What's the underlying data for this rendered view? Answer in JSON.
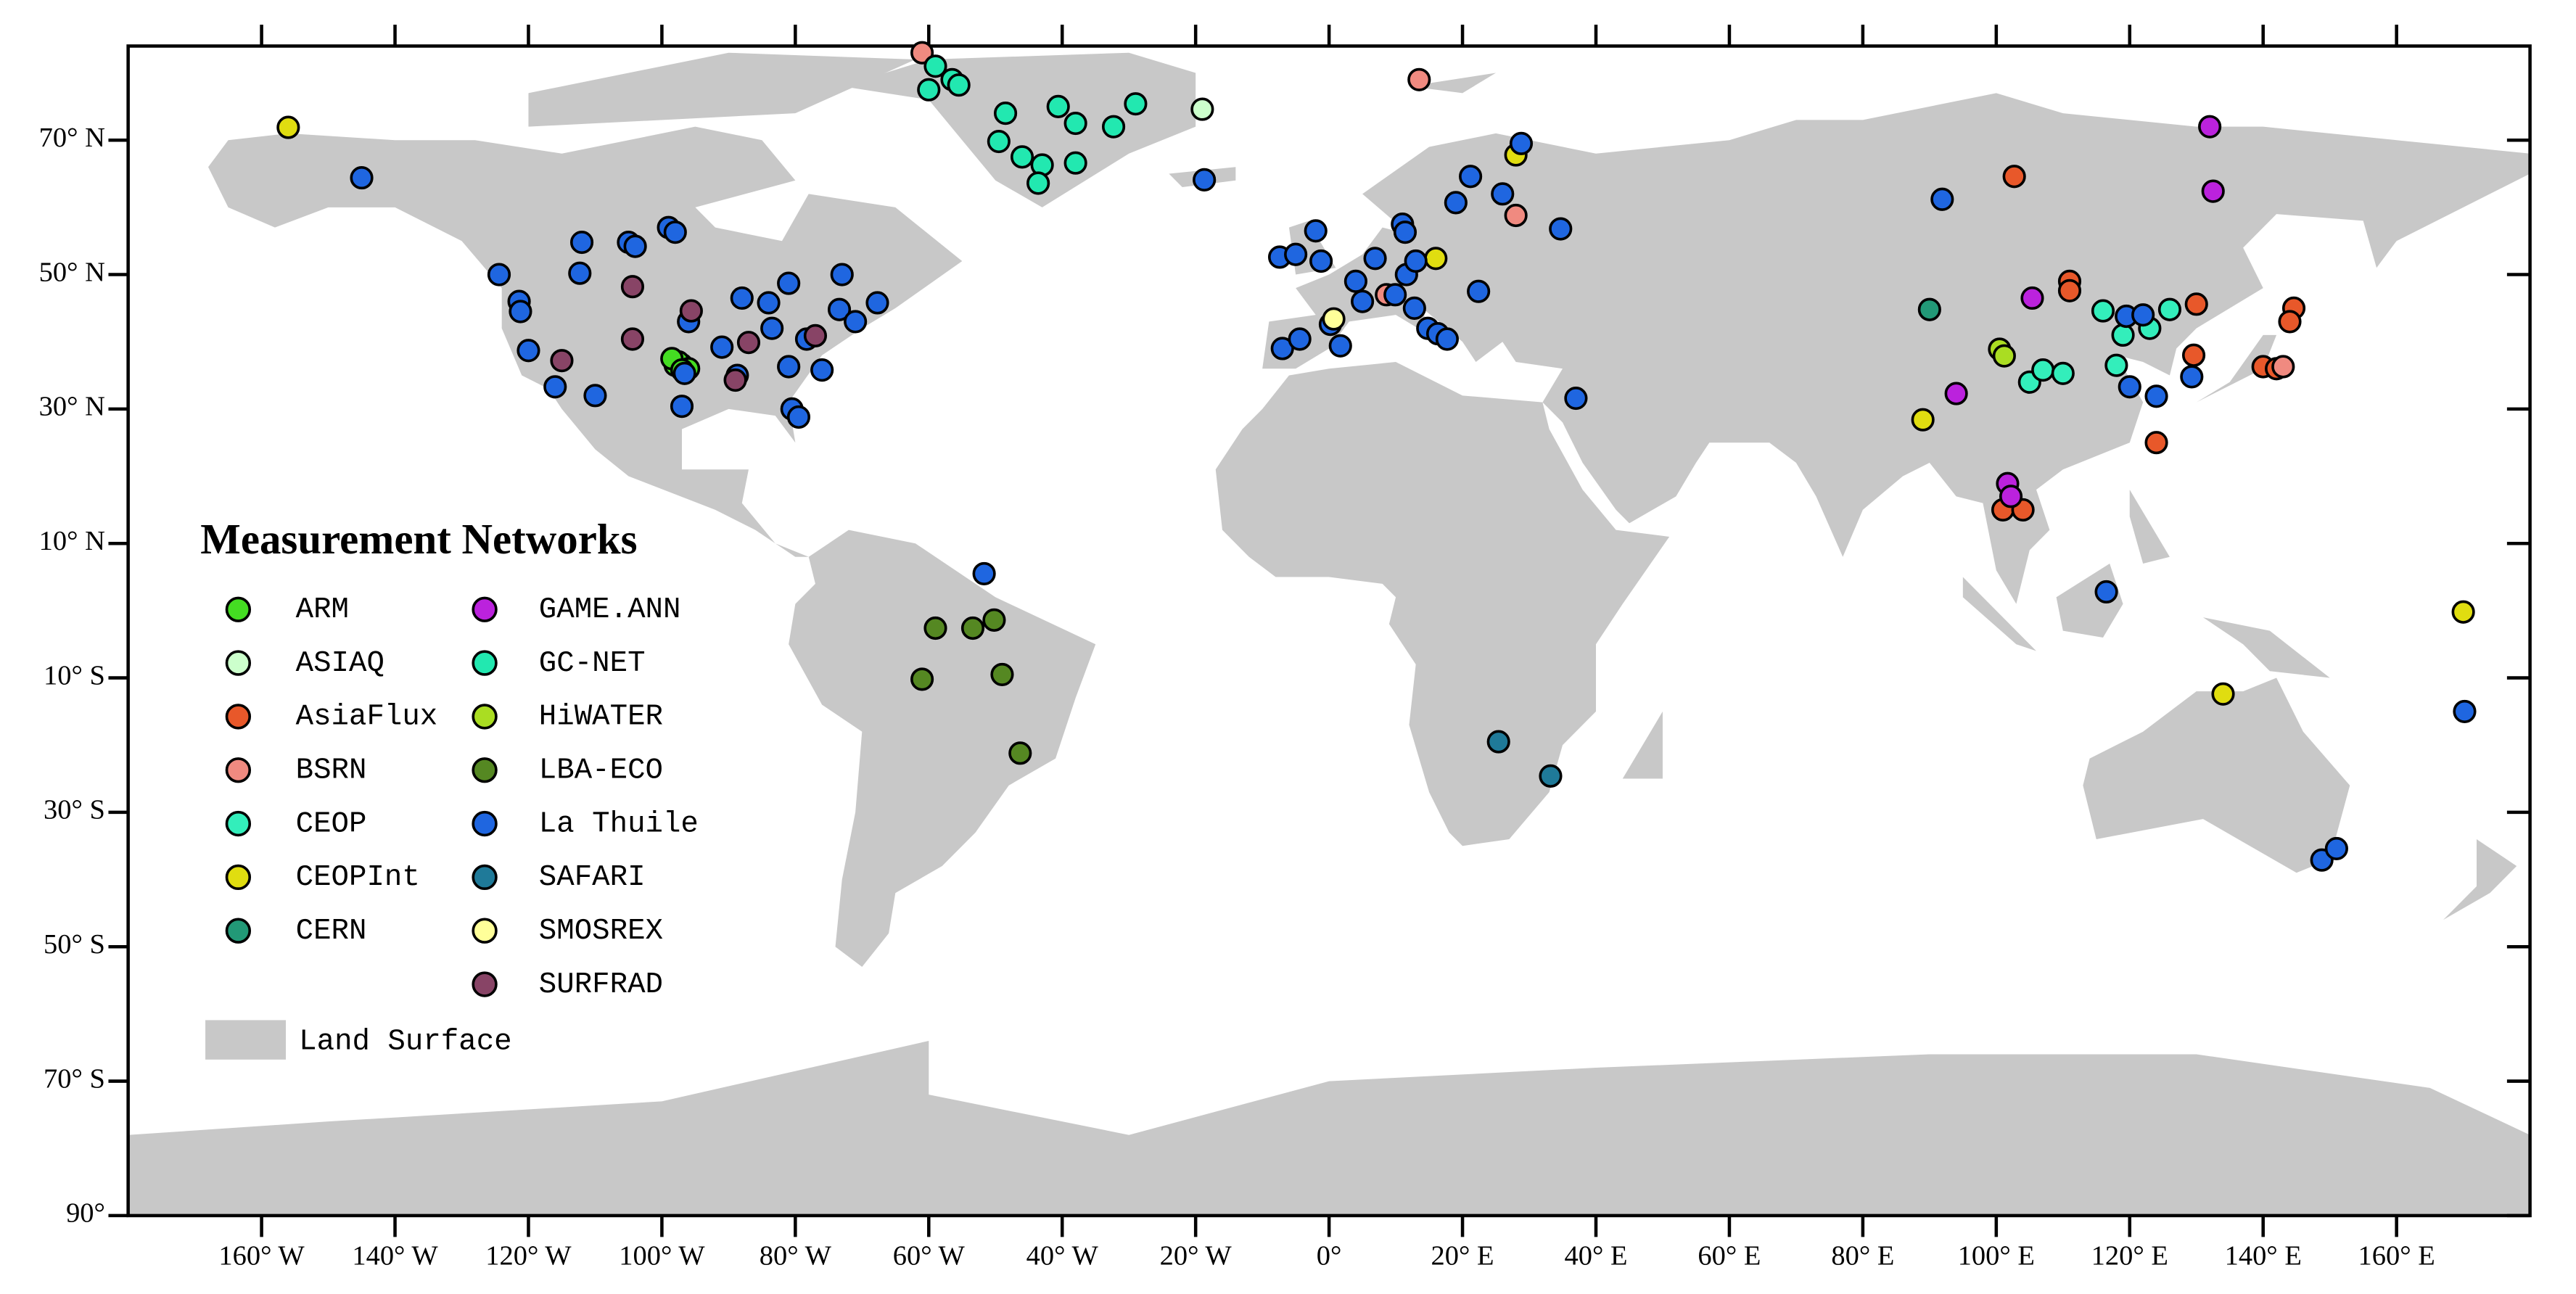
{
  "legend": {
    "title": "Measurement Networks",
    "land_label": "Land Surface"
  },
  "axes": {
    "xlim": [
      -180,
      180
    ],
    "ylim": [
      -90,
      84
    ],
    "xticks": [
      {
        "value": -160,
        "label": "160° W"
      },
      {
        "value": -140,
        "label": "140° W"
      },
      {
        "value": -120,
        "label": "120° W"
      },
      {
        "value": -100,
        "label": "100° W"
      },
      {
        "value": -80,
        "label": "80° W"
      },
      {
        "value": -60,
        "label": "60° W"
      },
      {
        "value": -40,
        "label": "40° W"
      },
      {
        "value": -20,
        "label": "20° W"
      },
      {
        "value": 0,
        "label": "0°"
      },
      {
        "value": 20,
        "label": "20° E"
      },
      {
        "value": 40,
        "label": "40° E"
      },
      {
        "value": 60,
        "label": "60° E"
      },
      {
        "value": 80,
        "label": "80° E"
      },
      {
        "value": 100,
        "label": "100° E"
      },
      {
        "value": 120,
        "label": "120° E"
      },
      {
        "value": 140,
        "label": "140° E"
      },
      {
        "value": 160,
        "label": "160° E"
      }
    ],
    "yticks": [
      {
        "value": 70,
        "label": "70° N"
      },
      {
        "value": 50,
        "label": "50° N"
      },
      {
        "value": 30,
        "label": "30° N"
      },
      {
        "value": 10,
        "label": "10° N"
      },
      {
        "value": -10,
        "label": "10° S"
      },
      {
        "value": -30,
        "label": "30° S"
      },
      {
        "value": -50,
        "label": "50° S"
      },
      {
        "value": -70,
        "label": "70° S"
      },
      {
        "value": -90,
        "label": "90°"
      }
    ]
  },
  "networks": [
    {
      "name": "ARM",
      "color": "#44dd22",
      "sites": [
        [
          -98,
          36.5
        ],
        [
          -97,
          36.6
        ],
        [
          -97.5,
          37
        ],
        [
          -96,
          36
        ],
        [
          -98.5,
          37.5
        ],
        [
          -97,
          35.8
        ]
      ]
    },
    {
      "name": "ASIAQ",
      "color": "#ccffcc",
      "sites": [
        [
          -19,
          74.6
        ]
      ]
    },
    {
      "name": "AsiaFlux",
      "color": "#e8582a",
      "sites": [
        [
          102.7,
          64.6
        ],
        [
          111,
          49
        ],
        [
          111,
          47.6
        ],
        [
          130,
          45.6
        ],
        [
          129.6,
          38
        ],
        [
          144.6,
          45
        ],
        [
          144,
          43
        ],
        [
          140,
          36.3
        ],
        [
          124,
          25
        ],
        [
          101,
          15
        ],
        [
          104,
          15
        ],
        [
          142,
          36
        ]
      ]
    },
    {
      "name": "BSRN",
      "color": "#f08a80",
      "sites": [
        [
          -61,
          83
        ],
        [
          13.5,
          79
        ],
        [
          28,
          58.8
        ],
        [
          8.6,
          47
        ],
        [
          143,
          36.3
        ]
      ]
    },
    {
      "name": "CEOP",
      "color": "#33eebb",
      "sites": [
        [
          116,
          44.6
        ],
        [
          118,
          36.5
        ],
        [
          119,
          41
        ],
        [
          123,
          42
        ],
        [
          126,
          44.8
        ],
        [
          105,
          34
        ],
        [
          107,
          35.8
        ],
        [
          110,
          35.3
        ]
      ]
    },
    {
      "name": "CEOPInt",
      "color": "#e0dd10",
      "sites": [
        [
          -156,
          71.9
        ],
        [
          89,
          28.4
        ],
        [
          134,
          -12.4
        ],
        [
          170,
          -0.2
        ],
        [
          16,
          52.4
        ],
        [
          28,
          67.8
        ]
      ]
    },
    {
      "name": "CERN",
      "color": "#229977",
      "sites": [
        [
          90,
          44.8
        ]
      ]
    },
    {
      "name": "GAME.ANN",
      "color": "#bb22dd",
      "sites": [
        [
          132,
          72
        ],
        [
          132.5,
          62.4
        ],
        [
          105.4,
          46.5
        ],
        [
          94,
          32.3
        ],
        [
          101.7,
          18.9
        ],
        [
          102.2,
          17
        ]
      ]
    },
    {
      "name": "GC-NET",
      "color": "#22e8b0",
      "sites": [
        [
          -59,
          81
        ],
        [
          -56.5,
          79
        ],
        [
          -55.5,
          78.2
        ],
        [
          -60,
          77.5
        ],
        [
          -48.5,
          74
        ],
        [
          -40.6,
          75
        ],
        [
          -32.3,
          72
        ],
        [
          -29,
          75.4
        ],
        [
          -38,
          72.5
        ],
        [
          -49.5,
          69.8
        ],
        [
          -46,
          67.5
        ],
        [
          -43,
          66.3
        ],
        [
          -43.6,
          63.6
        ],
        [
          -38,
          66.6
        ]
      ]
    },
    {
      "name": "HiWATER",
      "color": "#aadd22",
      "sites": [
        [
          100.5,
          38.9
        ],
        [
          101.2,
          37.9
        ]
      ]
    },
    {
      "name": "LBA-ECO",
      "color": "#558822",
      "sites": [
        [
          -59,
          -2.6
        ],
        [
          -53.4,
          -2.6
        ],
        [
          -50.2,
          -1.4
        ],
        [
          -49,
          -9.5
        ],
        [
          -61,
          -10.2
        ],
        [
          -46.3,
          -21.2
        ]
      ]
    },
    {
      "name": "La Thuile",
      "color": "#1f66e0",
      "sites": [
        [
          -145,
          64.4
        ],
        [
          -124.4,
          50
        ],
        [
          -121.4,
          46
        ],
        [
          -121.2,
          44.5
        ],
        [
          -120,
          38.7
        ],
        [
          -116,
          33.3
        ],
        [
          -110,
          32
        ],
        [
          -112,
          54.8
        ],
        [
          -112.3,
          50.2
        ],
        [
          -105,
          54.8
        ],
        [
          -104,
          54.2
        ],
        [
          -99,
          57
        ],
        [
          -98,
          56.3
        ],
        [
          -97,
          30.4
        ],
        [
          -96,
          43
        ],
        [
          -91,
          39.2
        ],
        [
          -88,
          46.5
        ],
        [
          -84,
          45.8
        ],
        [
          -81,
          48.7
        ],
        [
          -83.5,
          42
        ],
        [
          -78.3,
          40.4
        ],
        [
          -81,
          36.3
        ],
        [
          -76,
          35.8
        ],
        [
          -73.4,
          44.8
        ],
        [
          -73,
          50
        ],
        [
          -71,
          43
        ],
        [
          -67.7,
          45.8
        ],
        [
          -80.5,
          30
        ],
        [
          -79.5,
          28.8
        ],
        [
          -96.6,
          35.3
        ],
        [
          -88.7,
          35
        ],
        [
          -18.7,
          64.1
        ],
        [
          -51.7,
          5.5
        ],
        [
          -7.4,
          52.6
        ],
        [
          -5,
          53
        ],
        [
          -2,
          56.5
        ],
        [
          -1.2,
          52
        ],
        [
          -7,
          39
        ],
        [
          -4.4,
          40.4
        ],
        [
          0.2,
          42.6
        ],
        [
          1.7,
          39.4
        ],
        [
          4,
          49
        ],
        [
          6.9,
          52.4
        ],
        [
          5,
          46
        ],
        [
          9.9,
          47
        ],
        [
          11.6,
          50
        ],
        [
          12.8,
          45
        ],
        [
          14.8,
          42
        ],
        [
          16.3,
          41.2
        ],
        [
          17.7,
          40.4
        ],
        [
          11,
          57.5
        ],
        [
          11.4,
          56.3
        ],
        [
          13,
          52
        ],
        [
          19,
          60.7
        ],
        [
          21.2,
          64.6
        ],
        [
          22.4,
          47.5
        ],
        [
          26,
          62
        ],
        [
          34.7,
          56.8
        ],
        [
          28.8,
          69.5
        ],
        [
          37,
          31.6
        ],
        [
          91.9,
          61.2
        ],
        [
          119.5,
          43.8
        ],
        [
          122,
          44
        ],
        [
          120,
          33.3
        ],
        [
          124,
          31.9
        ],
        [
          129.3,
          34.8
        ],
        [
          116.5,
          2.8
        ],
        [
          148.8,
          -37.1
        ],
        [
          151,
          -35.4
        ],
        [
          170.2,
          -15
        ]
      ]
    },
    {
      "name": "SAFARI",
      "color": "#1f7a99",
      "sites": [
        [
          25.4,
          -19.5
        ],
        [
          33.2,
          -24.6
        ]
      ]
    },
    {
      "name": "SMOSREX",
      "color": "#ffff99",
      "sites": [
        [
          0.7,
          43.4
        ]
      ]
    },
    {
      "name": "SURFRAD",
      "color": "#884466",
      "sites": [
        [
          -115,
          37.2
        ],
        [
          -104.4,
          48.2
        ],
        [
          -104.4,
          40.4
        ],
        [
          -95.6,
          44.6
        ],
        [
          -89,
          34.3
        ],
        [
          -77,
          40.9
        ],
        [
          -87,
          39.9
        ]
      ]
    }
  ]
}
